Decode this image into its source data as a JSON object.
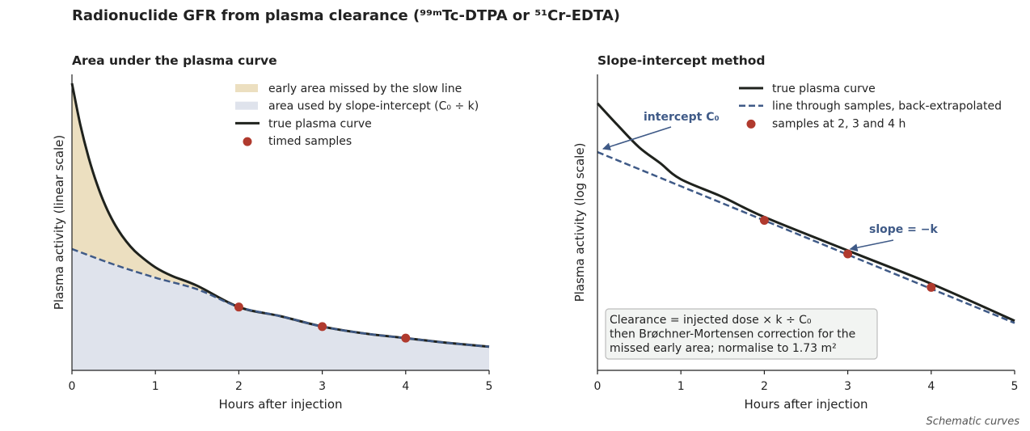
{
  "figure": {
    "title": "Radionuclide GFR from plasma clearance (⁹⁹ᵐTc-DTPA or ⁵¹Cr-EDTA)",
    "footnote": "Schematic curves"
  },
  "colors": {
    "true_curve": "#1f221d",
    "dashed_line": "#3f5a87",
    "samples": "#b03a2e",
    "early_area": "#ecdfc0",
    "used_area": "#dfe3ec",
    "annotation": "#3f5a87",
    "note_box_fill": "#f2f4f2",
    "note_box_edge": "#bdbdbd"
  },
  "chart_data": [
    {
      "type": "area",
      "title": "Area under the plasma curve",
      "xlabel": "Hours after injection",
      "ylabel": "Plasma activity (linear scale)",
      "xlim": [
        0,
        5
      ],
      "x_ticks": [
        "0",
        "1",
        "2",
        "3",
        "4",
        "5"
      ],
      "ylim": [
        0,
        100
      ],
      "y_scale": "linear",
      "y_ticks_shown": false,
      "grid": false,
      "legend_position": "top-right",
      "legend": [
        {
          "kind": "patch",
          "color_key": "early_area",
          "label": "early area missed by the slow line"
        },
        {
          "kind": "patch",
          "color_key": "used_area",
          "label": "area used by slope-intercept (C₀ ÷ k)"
        },
        {
          "kind": "line",
          "color_key": "true_curve",
          "label": "true plasma curve"
        },
        {
          "kind": "marker",
          "color_key": "samples",
          "label": "timed samples"
        }
      ],
      "series": [
        {
          "label": "true plasma curve",
          "x": [
            0,
            0.1,
            0.2,
            0.3,
            0.4,
            0.5,
            0.6,
            0.7,
            0.8,
            1.0,
            1.2,
            1.5,
            2.0,
            2.5,
            3.0,
            3.5,
            4.0,
            4.5,
            5.0
          ],
          "y": [
            97,
            83,
            71.9,
            62.9,
            55.7,
            50,
            45.5,
            41.9,
            39.1,
            34.8,
            31.9,
            28.6,
            21.4,
            18.3,
            14.8,
            12.5,
            10.9,
            9.3,
            8.0
          ]
        },
        {
          "label": "slope-intercept line",
          "x": [
            0,
            0.5,
            1.0,
            1.5,
            2.0,
            2.5,
            3.0,
            3.5,
            4.0,
            4.5,
            5.0
          ],
          "y": [
            41,
            35.8,
            31.3,
            27.4,
            21.4,
            18.3,
            14.8,
            12.5,
            10.9,
            9.3,
            8.0
          ]
        },
        {
          "label": "timed samples",
          "x": [
            2,
            3,
            4
          ],
          "y": [
            21.4,
            14.8,
            10.9
          ]
        }
      ]
    },
    {
      "type": "line",
      "title": "Slope-intercept method",
      "xlabel": "Hours after injection",
      "ylabel": "Plasma activity (log scale)",
      "xlim": [
        0,
        5
      ],
      "x_ticks": [
        "0",
        "1",
        "2",
        "3",
        "4",
        "5"
      ],
      "y_scale": "log",
      "y_ticks_shown": false,
      "grid": false,
      "legend_position": "top-right",
      "legend": [
        {
          "kind": "line",
          "color_key": "true_curve",
          "label": "true plasma curve"
        },
        {
          "kind": "dashed",
          "color_key": "dashed_line",
          "label": "line through samples, back-extrapolated"
        },
        {
          "kind": "marker",
          "color_key": "samples",
          "label": "samples at 2, 3 and 4 h"
        }
      ],
      "series": [
        {
          "label": "true plasma curve",
          "x": [
            0,
            0.25,
            0.5,
            0.75,
            1.0,
            1.5,
            2.0,
            3.0,
            4.0,
            5.0
          ],
          "y": [
            100,
            77,
            60,
            50,
            41.4,
            33.7,
            26.7,
            18.1,
            12.3,
            8.0
          ]
        },
        {
          "label": "back-extrapolated line",
          "x": [
            0,
            5
          ],
          "y": [
            56.8,
            7.8
          ]
        },
        {
          "label": "samples at 2, 3 and 4 h",
          "x": [
            2,
            3,
            4
          ],
          "y": [
            25.7,
            17.4,
            11.8
          ]
        }
      ],
      "annotations": [
        {
          "text": "intercept C₀",
          "points_to": {
            "x": 0,
            "y": 56.8
          }
        },
        {
          "text": "slope = −k",
          "points_to": {
            "x": 3,
            "y": 17.4
          }
        }
      ],
      "note_lines": [
        "Clearance = injected dose × k ÷ C₀",
        "then Brøchner-Mortensen correction for the",
        "missed early area; normalise to 1.73 m²"
      ]
    }
  ]
}
